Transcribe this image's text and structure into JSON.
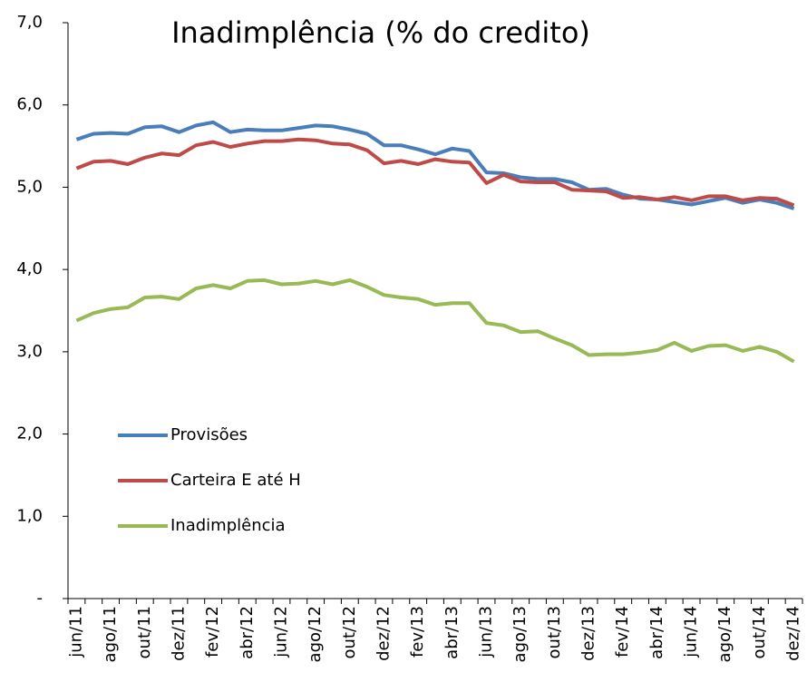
{
  "chart_data": {
    "type": "line",
    "title": "Inadimplência (% do credito)",
    "categories": [
      "jun/11",
      null,
      "ago/11",
      null,
      "out/11",
      null,
      "dez/11",
      null,
      "fev/12",
      null,
      "abr/12",
      null,
      "jun/12",
      null,
      "ago/12",
      null,
      "out/12",
      null,
      "dez/12",
      null,
      "fev/13",
      null,
      "abr/13",
      null,
      "jun/13",
      null,
      "ago/13",
      null,
      "out/13",
      null,
      "dez/13",
      null,
      "fev/14",
      null,
      "abr/14",
      null,
      "jun/14",
      null,
      "ago/14",
      null,
      "out/14",
      null,
      "dez/14"
    ],
    "series": [
      {
        "name": "Provisões",
        "color": "#4a7ebb",
        "values": [
          5.58,
          5.65,
          5.66,
          5.65,
          5.73,
          5.74,
          5.67,
          5.75,
          5.79,
          5.67,
          5.7,
          5.69,
          5.69,
          5.72,
          5.75,
          5.74,
          5.7,
          5.65,
          5.51,
          5.51,
          5.46,
          5.4,
          5.47,
          5.44,
          5.18,
          5.17,
          5.12,
          5.1,
          5.1,
          5.06,
          4.97,
          4.98,
          4.91,
          4.86,
          4.85,
          4.82,
          4.79,
          4.83,
          4.87,
          4.81,
          4.85,
          4.81,
          4.74
        ]
      },
      {
        "name": "Carteira E até H",
        "color": "#be4b48",
        "values": [
          5.23,
          5.31,
          5.32,
          5.28,
          5.36,
          5.41,
          5.39,
          5.51,
          5.55,
          5.49,
          5.53,
          5.56,
          5.56,
          5.58,
          5.57,
          5.53,
          5.52,
          5.45,
          5.29,
          5.32,
          5.28,
          5.34,
          5.31,
          5.3,
          5.05,
          5.15,
          5.07,
          5.06,
          5.06,
          4.97,
          4.96,
          4.95,
          4.87,
          4.88,
          4.85,
          4.88,
          4.84,
          4.89,
          4.89,
          4.84,
          4.87,
          4.86,
          4.78
        ]
      },
      {
        "name": "Inadimplência",
        "color": "#98b954",
        "values": [
          3.38,
          3.47,
          3.52,
          3.54,
          3.66,
          3.67,
          3.64,
          3.77,
          3.81,
          3.77,
          3.86,
          3.87,
          3.82,
          3.83,
          3.86,
          3.82,
          3.87,
          3.79,
          3.69,
          3.66,
          3.64,
          3.57,
          3.59,
          3.59,
          3.35,
          3.32,
          3.24,
          3.25,
          3.16,
          3.08,
          2.96,
          2.97,
          2.97,
          2.99,
          3.02,
          3.11,
          3.01,
          3.07,
          3.08,
          3.01,
          3.06,
          3.0,
          2.88
        ]
      }
    ],
    "ylim": [
      0,
      7
    ],
    "yticks": [
      {
        "value": 0,
        "label": "-"
      },
      {
        "value": 1,
        "label": "1,0"
      },
      {
        "value": 2,
        "label": "2,0"
      },
      {
        "value": 3,
        "label": "3,0"
      },
      {
        "value": 4,
        "label": "4,0"
      },
      {
        "value": 5,
        "label": "5,0"
      },
      {
        "value": 6,
        "label": "6,0"
      },
      {
        "value": 7,
        "label": "7,0"
      }
    ],
    "grid": false,
    "legend": "left"
  }
}
